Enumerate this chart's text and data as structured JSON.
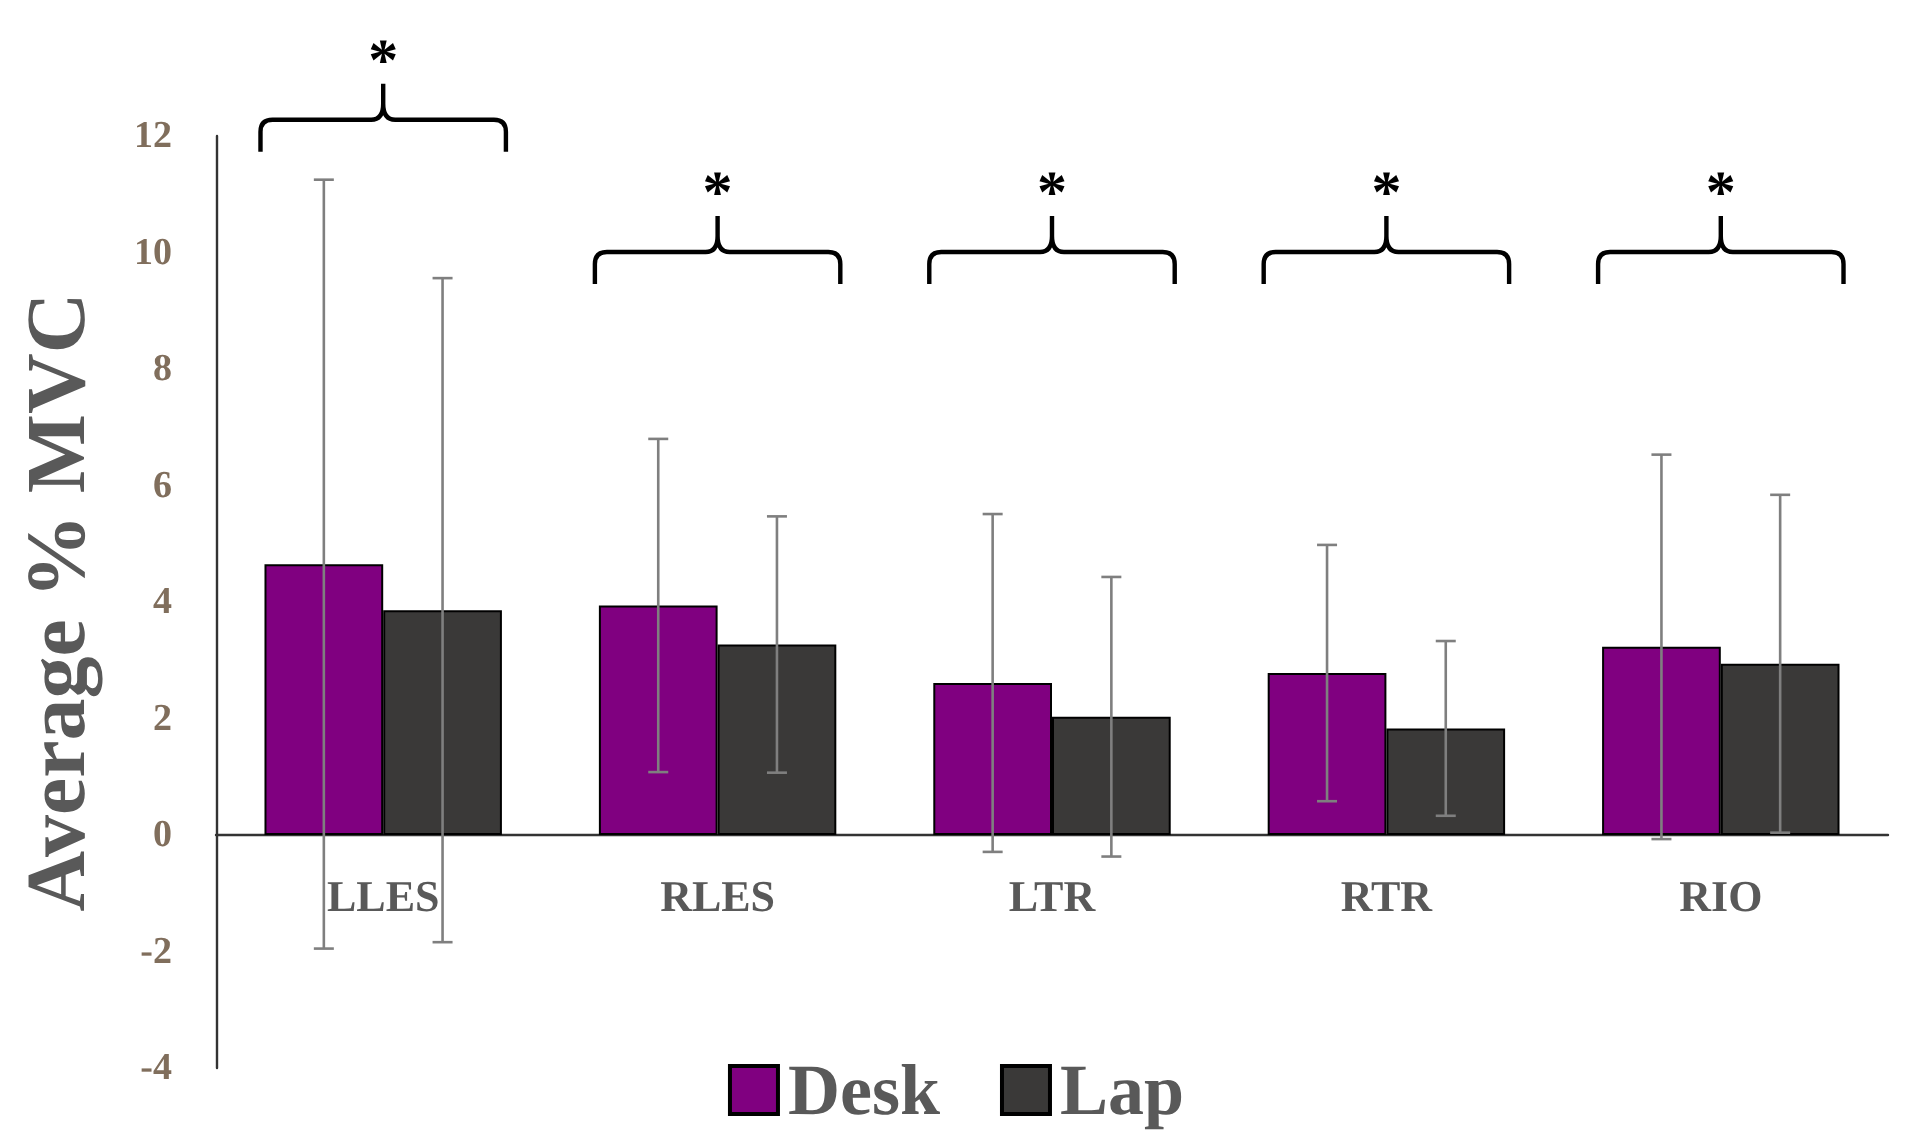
{
  "chart_data": {
    "type": "bar",
    "ylabel": "Average % MVC",
    "categories": [
      "LLES",
      "RLES",
      "LTR",
      "RTR",
      "RIO"
    ],
    "series": [
      {
        "name": "Desk",
        "color": "#800080",
        "values": [
          4.65,
          3.94,
          2.61,
          2.78,
          3.23
        ],
        "errors": [
          6.6,
          2.86,
          2.9,
          2.2,
          3.3
        ]
      },
      {
        "name": "Lap",
        "color": "#3a3938",
        "values": [
          3.86,
          3.27,
          2.03,
          1.83,
          2.94
        ],
        "errors": [
          5.7,
          2.2,
          2.4,
          1.5,
          2.9
        ]
      }
    ],
    "ylim": [
      -4,
      12
    ],
    "yticks": [
      -4,
      -2,
      0,
      2,
      4,
      6,
      8,
      10,
      12
    ],
    "grid": false,
    "legend": "bottom",
    "annotations": [
      "*",
      "*",
      "*",
      "*",
      "*"
    ]
  }
}
